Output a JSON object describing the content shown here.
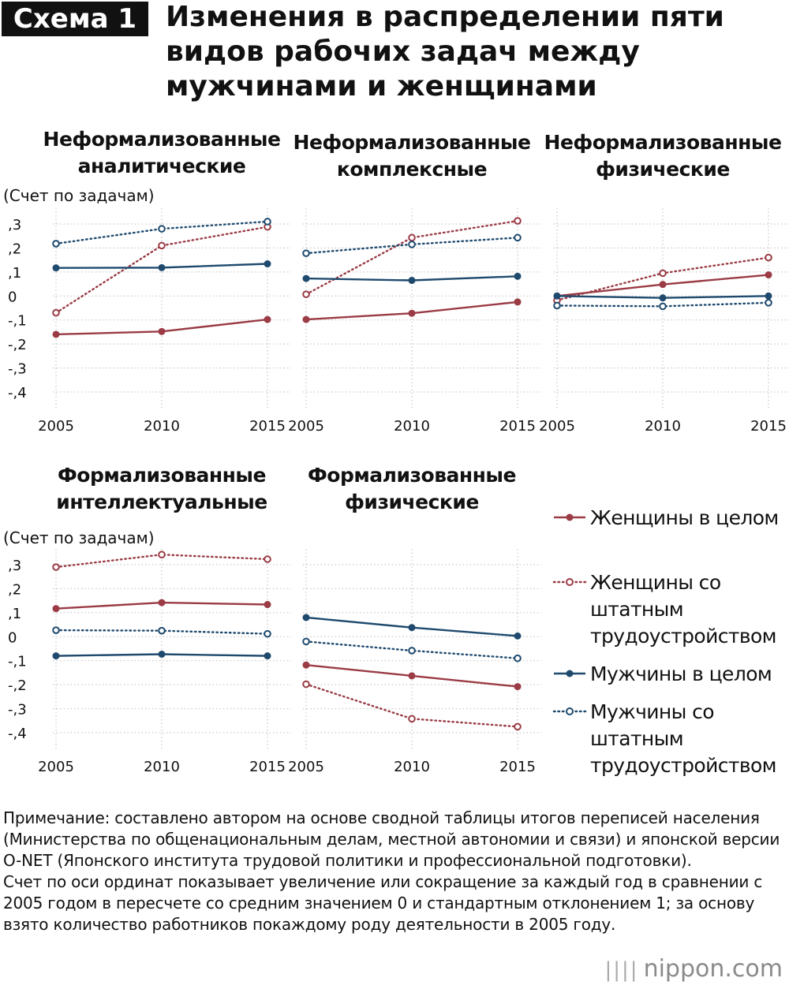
{
  "header": {
    "badge": "Схема 1",
    "title": "Изменения в распределении пяти видов рабочих задач между мужчинами и женщинами"
  },
  "y_axis_caption": "(Счет по задачам)",
  "colors": {
    "women": "#9a3b45",
    "men": "#1f4a6e",
    "grid": "#bdbdbd",
    "axis": "#bdbdbd"
  },
  "legend": [
    {
      "key": "women_total",
      "label": "Женщины в целом",
      "style": "solid",
      "color": "#9a3b45"
    },
    {
      "key": "women_regular",
      "label": "Женщины со штатным трудоустройством",
      "style": "dotted",
      "color": "#9a3b45"
    },
    {
      "key": "men_total",
      "label": "Мужчины в целом",
      "style": "solid",
      "color": "#1f4a6e"
    },
    {
      "key": "men_regular",
      "label": "Мужчины со штатным трудоустройством",
      "style": "dotted",
      "color": "#1f4a6e"
    }
  ],
  "chart_data": [
    {
      "type": "line",
      "title_lines": [
        "Неформализованные",
        "аналитические"
      ],
      "x": [
        "2005",
        "2010",
        "2015"
      ],
      "ylim": [
        -0.4,
        0.3
      ],
      "yticks": [
        ",3",
        ",2",
        ",1",
        "0",
        "-,1",
        "-,2",
        "-,3",
        "-,4"
      ],
      "series": [
        {
          "name": "Женщины в целом",
          "values": [
            -0.16,
            -0.148,
            -0.098
          ]
        },
        {
          "name": "Женщины со штатным трудоустройством",
          "values": [
            -0.07,
            0.21,
            0.288
          ]
        },
        {
          "name": "Мужчины в целом",
          "values": [
            0.117,
            0.118,
            0.134
          ]
        },
        {
          "name": "Мужчины со штатным трудоустройством",
          "values": [
            0.218,
            0.28,
            0.31
          ]
        }
      ]
    },
    {
      "type": "line",
      "title_lines": [
        "Неформализованные",
        "комплексные"
      ],
      "x": [
        "2005",
        "2010",
        "2015"
      ],
      "ylim": [
        -0.4,
        0.3
      ],
      "series": [
        {
          "name": "Женщины в целом",
          "values": [
            -0.098,
            -0.072,
            -0.025
          ]
        },
        {
          "name": "Женщины со штатным трудоустройством",
          "values": [
            0.007,
            0.243,
            0.313
          ]
        },
        {
          "name": "Мужчины в целом",
          "values": [
            0.073,
            0.065,
            0.082
          ]
        },
        {
          "name": "Мужчины со штатным трудоустройством",
          "values": [
            0.178,
            0.215,
            0.243
          ]
        }
      ]
    },
    {
      "type": "line",
      "title_lines": [
        "Неформализованные",
        "физические"
      ],
      "x": [
        "2005",
        "2010",
        "2015"
      ],
      "ylim": [
        -0.4,
        0.3
      ],
      "series": [
        {
          "name": "Женщины в целом",
          "values": [
            0.0,
            0.048,
            0.088
          ]
        },
        {
          "name": "Женщины со штатным трудоустройством",
          "values": [
            -0.018,
            0.095,
            0.16
          ]
        },
        {
          "name": "Мужчины в целом",
          "values": [
            0.0,
            -0.008,
            0.0
          ]
        },
        {
          "name": "Мужчины со штатным трудоустройством",
          "values": [
            -0.04,
            -0.043,
            -0.028
          ]
        }
      ]
    },
    {
      "type": "line",
      "title_lines": [
        "Формализованные",
        "интеллектуальные"
      ],
      "x": [
        "2005",
        "2010",
        "2015"
      ],
      "ylim": [
        -0.4,
        0.3
      ],
      "yticks": [
        ",3",
        ",2",
        ",1",
        "0",
        "-,1",
        "-,2",
        "-,3",
        "-,4"
      ],
      "series": [
        {
          "name": "Женщины в целом",
          "values": [
            0.117,
            0.142,
            0.134
          ]
        },
        {
          "name": "Женщины со штатным трудоустройством",
          "values": [
            0.29,
            0.342,
            0.323
          ]
        },
        {
          "name": "Мужчины в целом",
          "values": [
            -0.08,
            -0.073,
            -0.08
          ]
        },
        {
          "name": "Мужчины со штатным трудоустройством",
          "values": [
            0.027,
            0.025,
            0.012
          ]
        }
      ]
    },
    {
      "type": "line",
      "title_lines": [
        "Формализованные",
        "физические"
      ],
      "x": [
        "2005",
        "2010",
        "2015"
      ],
      "ylim": [
        -0.4,
        0.3
      ],
      "series": [
        {
          "name": "Женщины в целом",
          "values": [
            -0.118,
            -0.163,
            -0.208
          ]
        },
        {
          "name": "Женщины со штатным трудоустройством",
          "values": [
            -0.198,
            -0.342,
            -0.375
          ]
        },
        {
          "name": "Мужчины в целом",
          "values": [
            0.08,
            0.038,
            0.003
          ]
        },
        {
          "name": "Мужчины со штатным трудоустройством",
          "values": [
            -0.02,
            -0.058,
            -0.09
          ]
        }
      ]
    }
  ],
  "notes": [
    "Примечание: составлено автором на основе сводной таблицы итогов переписей населения (Министерства по общенациональным делам, местной автономии и связи) и японской версии O-NET (Японского института трудовой политики и профессиональной подготовки).",
    "Счет по оси ординат показывает увеличение или сокращение за каждый год в сравнении с 2005 годом в пересчете со средним значением 0 и стандартным отклонением 1; за основу взято количество работников покаждому роду деятельности в 2005 году."
  ],
  "brand": "nippon.com"
}
